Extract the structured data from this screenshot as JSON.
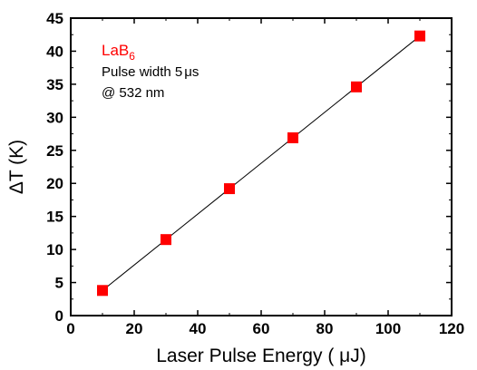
{
  "chart_data": {
    "type": "scatter",
    "series": [
      {
        "marker": "square",
        "color": "#ff0000",
        "fit_line": true,
        "x": [
          10,
          30,
          50,
          70,
          90,
          110
        ],
        "y": [
          3.8,
          11.5,
          19.2,
          26.9,
          34.6,
          42.3
        ]
      }
    ],
    "fit_line_color": "#000000",
    "xlabel_parts": [
      "Laser Pulse Energy ( ",
      "μ",
      "J)"
    ],
    "ylabel_parts": [
      "Δ",
      "T (K)"
    ],
    "xlim": [
      0,
      120
    ],
    "ylim": [
      0,
      45
    ],
    "xticks": [
      "0",
      "20",
      "40",
      "60",
      "80",
      "100",
      "120"
    ],
    "yticks": [
      "0",
      "5",
      "10",
      "15",
      "20",
      "25",
      "30",
      "35",
      "40",
      "45"
    ],
    "grid": false,
    "annotations": {
      "material_main": "LaB",
      "material_sub": "6",
      "line1_prefix": "Pulse width 5",
      "line1_unit": "μs",
      "line2": "@ 532 nm"
    }
  }
}
